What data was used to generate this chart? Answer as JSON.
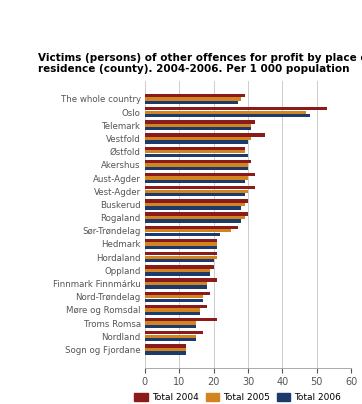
{
  "title": "Victims (persons) of other offences for profit by place of\nresidence (county). 2004-2006. Per 1 000 population",
  "categories": [
    "The whole country",
    "Oslo",
    "Telemark",
    "Vestfold",
    "Østfold",
    "Akershus",
    "Aust-Agder",
    "Vest-Agder",
    "Buskerud",
    "Rogaland",
    "Sør-Trøndelag",
    "Hedmark",
    "Hordaland",
    "Oppland",
    "Finnmark Finnmárku",
    "Nord-Trøndelag",
    "Møre og Romsdal",
    "Troms Romsa",
    "Nordland",
    "Sogn og Fjordane"
  ],
  "total_2004": [
    29,
    53,
    32,
    35,
    29,
    31,
    32,
    32,
    30,
    30,
    27,
    21,
    21,
    20,
    21,
    19,
    18,
    21,
    17,
    12
  ],
  "total_2005": [
    28,
    47,
    31,
    31,
    29,
    30,
    30,
    30,
    29,
    29,
    25,
    21,
    21,
    19,
    18,
    17,
    16,
    15,
    15,
    12
  ],
  "total_2006": [
    27,
    48,
    31,
    30,
    30,
    30,
    29,
    29,
    28,
    28,
    22,
    21,
    20,
    19,
    18,
    17,
    16,
    15,
    15,
    12
  ],
  "color_2004": "#8B1A1A",
  "color_2005": "#D2851E",
  "color_2006": "#1C3A6B",
  "background_color": "#ffffff",
  "grid_color": "#cccccc",
  "xlim": [
    0,
    60
  ],
  "xticks": [
    0,
    10,
    20,
    30,
    40,
    50,
    60
  ],
  "legend_labels": [
    "Total 2004",
    "Total 2005",
    "Total 2006"
  ]
}
